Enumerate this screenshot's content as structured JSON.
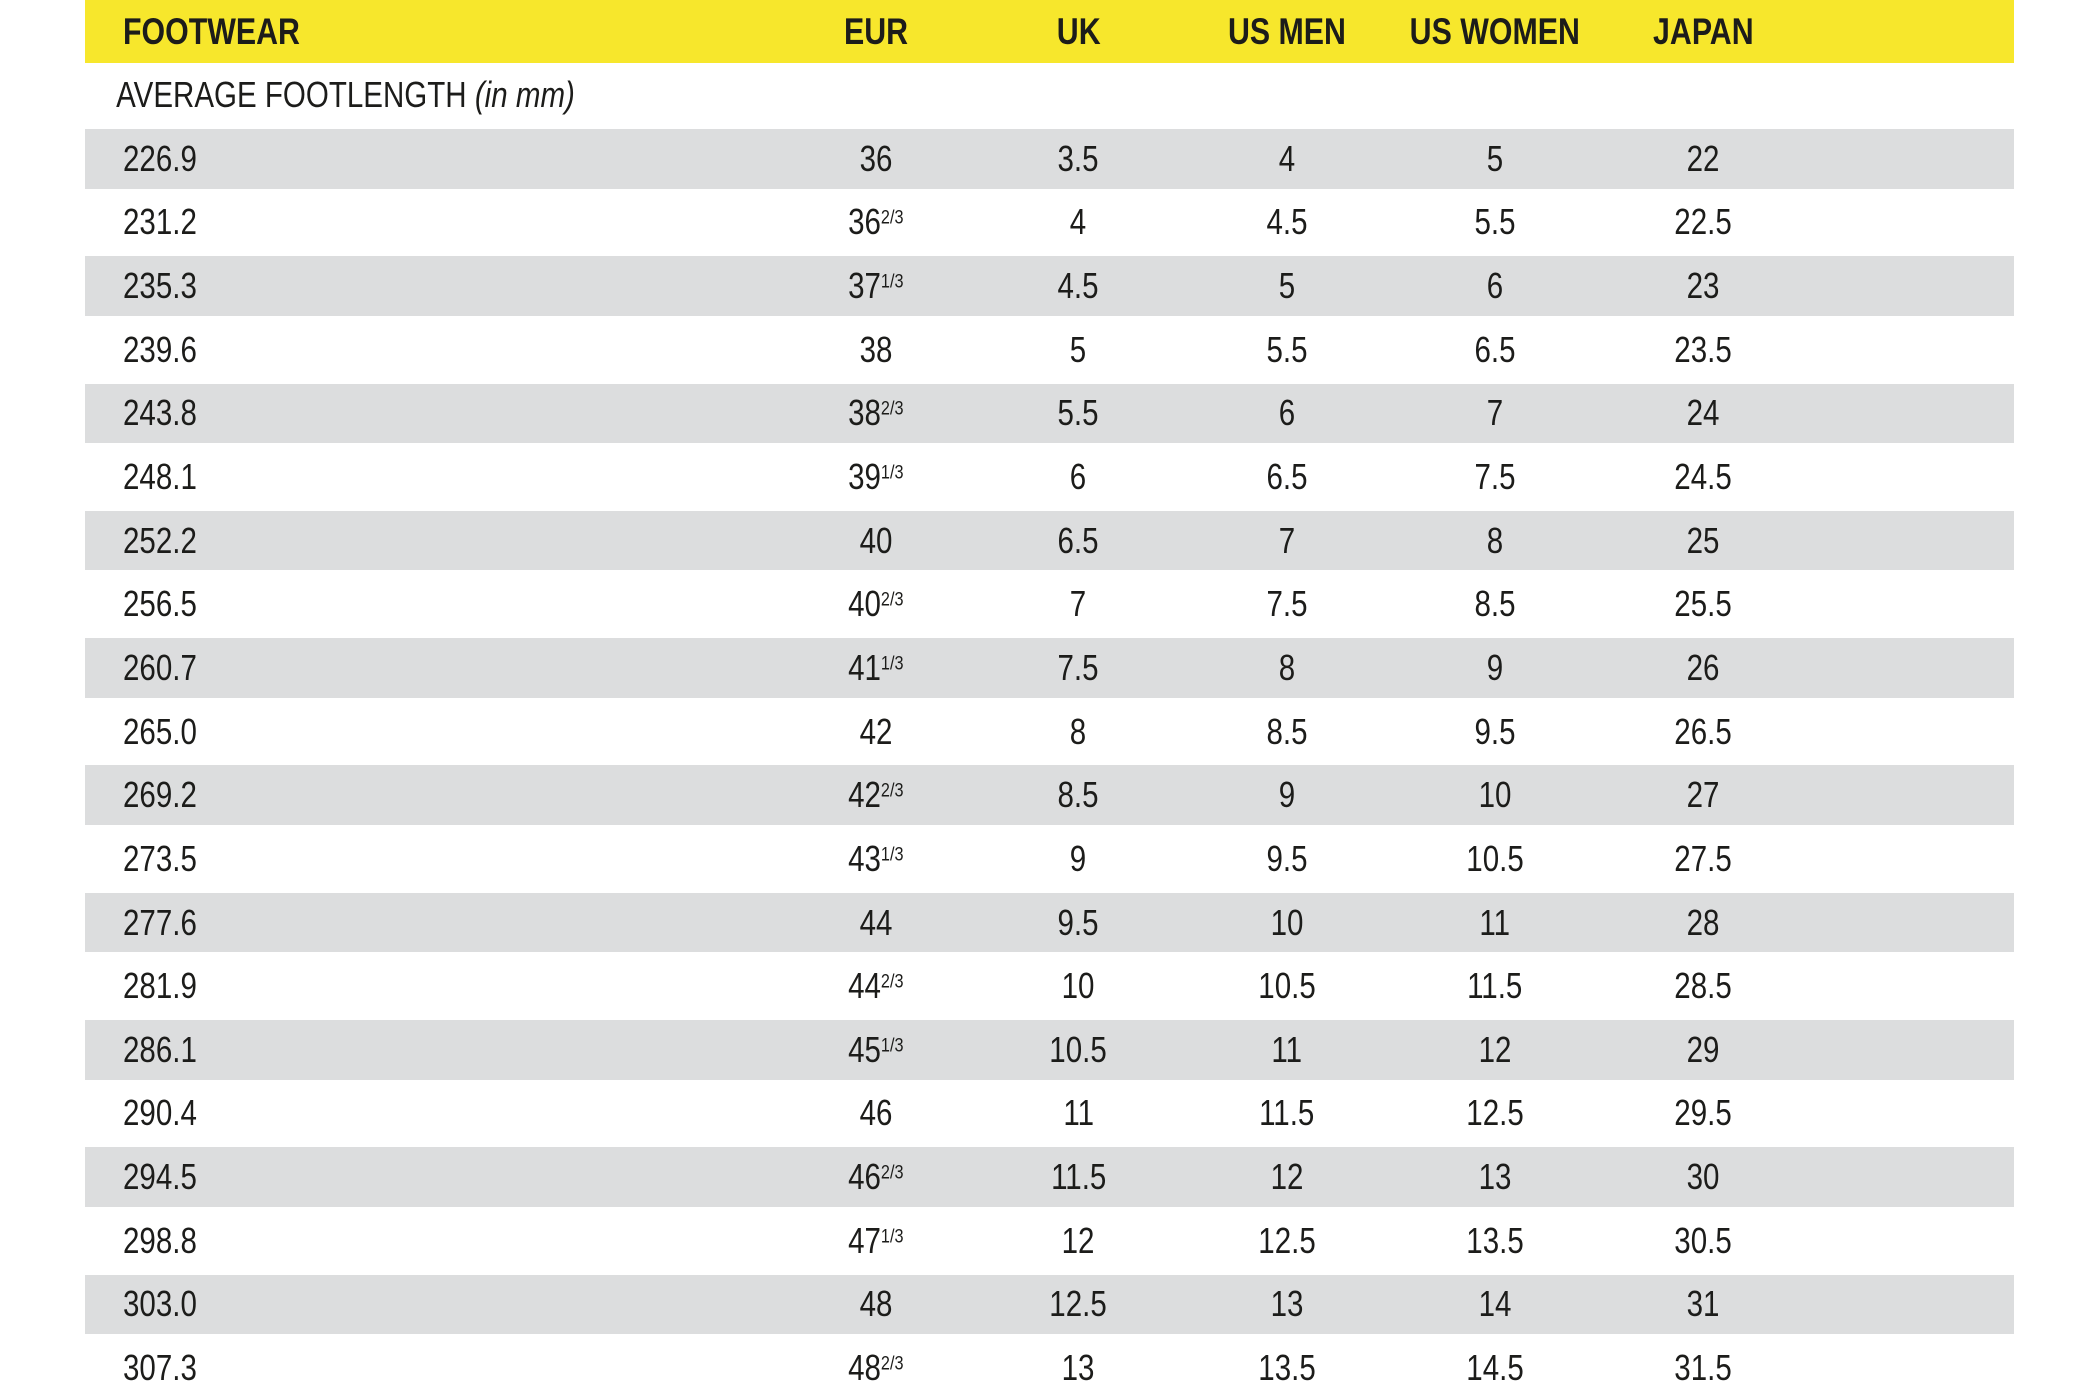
{
  "colors": {
    "header_bg": "#f7e72c",
    "alt_row_bg": "#dcddde",
    "text": "#1c1c1a"
  },
  "chart_data": {
    "type": "table",
    "title": "FOOTWEAR",
    "subtitle_main": "AVERAGE FOOTLENGTH",
    "subtitle_note": "(in mm)",
    "columns": [
      "FOOTWEAR",
      "EUR",
      "UK",
      "US MEN",
      "US WOMEN",
      "JAPAN"
    ],
    "rows": [
      {
        "mm": "226.9",
        "eur": "36",
        "eur_frac": "",
        "uk": "3.5",
        "us_men": "4",
        "us_women": "5",
        "japan": "22"
      },
      {
        "mm": "231.2",
        "eur": "36",
        "eur_frac": "2/3",
        "uk": "4",
        "us_men": "4.5",
        "us_women": "5.5",
        "japan": "22.5"
      },
      {
        "mm": "235.3",
        "eur": "37",
        "eur_frac": "1/3",
        "uk": "4.5",
        "us_men": "5",
        "us_women": "6",
        "japan": "23"
      },
      {
        "mm": "239.6",
        "eur": "38",
        "eur_frac": "",
        "uk": "5",
        "us_men": "5.5",
        "us_women": "6.5",
        "japan": "23.5"
      },
      {
        "mm": "243.8",
        "eur": "38",
        "eur_frac": "2/3",
        "uk": "5.5",
        "us_men": "6",
        "us_women": "7",
        "japan": "24"
      },
      {
        "mm": "248.1",
        "eur": "39",
        "eur_frac": "1/3",
        "uk": "6",
        "us_men": "6.5",
        "us_women": "7.5",
        "japan": "24.5"
      },
      {
        "mm": "252.2",
        "eur": "40",
        "eur_frac": "",
        "uk": "6.5",
        "us_men": "7",
        "us_women": "8",
        "japan": "25"
      },
      {
        "mm": "256.5",
        "eur": "40",
        "eur_frac": "2/3",
        "uk": "7",
        "us_men": "7.5",
        "us_women": "8.5",
        "japan": "25.5"
      },
      {
        "mm": "260.7",
        "eur": "41",
        "eur_frac": "1/3",
        "uk": "7.5",
        "us_men": "8",
        "us_women": "9",
        "japan": "26"
      },
      {
        "mm": "265.0",
        "eur": "42",
        "eur_frac": "",
        "uk": "8",
        "us_men": "8.5",
        "us_women": "9.5",
        "japan": "26.5"
      },
      {
        "mm": "269.2",
        "eur": "42",
        "eur_frac": "2/3",
        "uk": "8.5",
        "us_men": "9",
        "us_women": "10",
        "japan": "27"
      },
      {
        "mm": "273.5",
        "eur": "43",
        "eur_frac": "1/3",
        "uk": "9",
        "us_men": "9.5",
        "us_women": "10.5",
        "japan": "27.5"
      },
      {
        "mm": "277.6",
        "eur": "44",
        "eur_frac": "",
        "uk": "9.5",
        "us_men": "10",
        "us_women": "11",
        "japan": "28"
      },
      {
        "mm": "281.9",
        "eur": "44",
        "eur_frac": "2/3",
        "uk": "10",
        "us_men": "10.5",
        "us_women": "11.5",
        "japan": "28.5"
      },
      {
        "mm": "286.1",
        "eur": "45",
        "eur_frac": "1/3",
        "uk": "10.5",
        "us_men": "11",
        "us_women": "12",
        "japan": "29"
      },
      {
        "mm": "290.4",
        "eur": "46",
        "eur_frac": "",
        "uk": "11",
        "us_men": "11.5",
        "us_women": "12.5",
        "japan": "29.5"
      },
      {
        "mm": "294.5",
        "eur": "46",
        "eur_frac": "2/3",
        "uk": "11.5",
        "us_men": "12",
        "us_women": "13",
        "japan": "30"
      },
      {
        "mm": "298.8",
        "eur": "47",
        "eur_frac": "1/3",
        "uk": "12",
        "us_men": "12.5",
        "us_women": "13.5",
        "japan": "30.5"
      },
      {
        "mm": "303.0",
        "eur": "48",
        "eur_frac": "",
        "uk": "12.5",
        "us_men": "13",
        "us_women": "14",
        "japan": "31"
      },
      {
        "mm": "307.3",
        "eur": "48",
        "eur_frac": "2/3",
        "uk": "13",
        "us_men": "13.5",
        "us_women": "14.5",
        "japan": "31.5"
      }
    ]
  }
}
